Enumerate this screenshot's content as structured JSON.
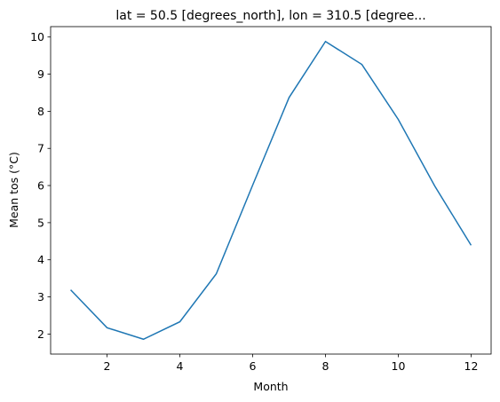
{
  "chart_data": {
    "type": "line",
    "title": "lat = 50.5 [degrees_north], lon = 310.5 [degree...",
    "x_label": "Month",
    "y_label": "Mean tos (°C)",
    "x": [
      1,
      2,
      3,
      4,
      5,
      6,
      7,
      8,
      9,
      10,
      11,
      12
    ],
    "series": [
      {
        "color": "#1f77b4",
        "values": [
          3.19,
          2.17,
          1.86,
          2.33,
          3.62,
          6.01,
          8.37,
          9.88,
          9.26,
          7.78,
          5.99,
          4.39
        ]
      }
    ],
    "xlim": [
      0.45,
      12.55
    ],
    "xticks": [
      2,
      4,
      6,
      8,
      10,
      12
    ],
    "ylim": [
      1.46,
      10.28
    ],
    "yticks": [
      2,
      3,
      4,
      5,
      6,
      7,
      8,
      9,
      10
    ],
    "grid": false
  }
}
